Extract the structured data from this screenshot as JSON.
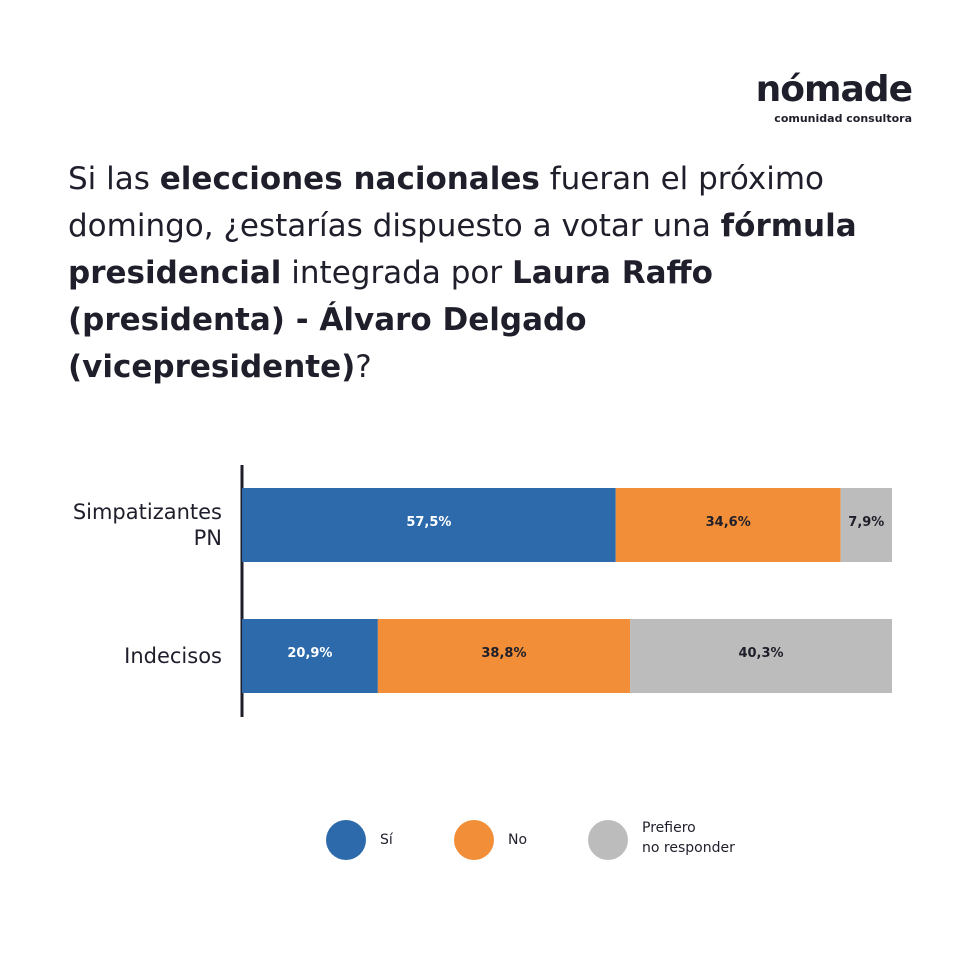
{
  "brand": {
    "name": "nómade",
    "tagline": "comunidad consultora"
  },
  "question": {
    "segments": [
      {
        "text": "Si las ",
        "bold": false
      },
      {
        "text": "elecciones nacionales",
        "bold": true
      },
      {
        "text": " fueran el próximo domingo, ¿estarías dispuesto a votar una ",
        "bold": false
      },
      {
        "text": "fórmula presidencial",
        "bold": true
      },
      {
        "text": " integrada por ",
        "bold": false
      },
      {
        "text": "Laura Raffo (presidenta) - Álvaro Delgado (vicepresidente)",
        "bold": true
      },
      {
        "text": "?",
        "bold": false
      }
    ]
  },
  "chart_data": {
    "type": "bar",
    "orientation": "horizontal",
    "stacked": true,
    "categories": [
      "Simpatizantes PN",
      "Indecisos"
    ],
    "category_lines": [
      [
        "Simpatizantes",
        "PN"
      ],
      [
        "Indecisos"
      ]
    ],
    "series": [
      {
        "name": "Sí",
        "color": "#2c6aab",
        "label_color": "#ffffff",
        "values": [
          57.5,
          20.9
        ],
        "labels": [
          "57,5%",
          "20,9%"
        ]
      },
      {
        "name": "No",
        "color": "#f28e37",
        "label_color": "#1e1f2b",
        "values": [
          34.6,
          38.8
        ],
        "labels": [
          "34,6%",
          "38,8%"
        ]
      },
      {
        "name": "Prefiero no responder",
        "color": "#bdbcbc",
        "label_color": "#1e1f2b",
        "values": [
          7.9,
          40.3
        ],
        "labels": [
          "7,9%",
          "40,3%"
        ]
      }
    ],
    "xlim": [
      0,
      100
    ],
    "grid": false,
    "legend_position": "bottom"
  },
  "legend": [
    {
      "lines": [
        "Sí"
      ],
      "color": "#2c6aab"
    },
    {
      "lines": [
        "No"
      ],
      "color": "#f28e37"
    },
    {
      "lines": [
        "Prefiero",
        "no responder"
      ],
      "color": "#bdbcbc"
    }
  ]
}
